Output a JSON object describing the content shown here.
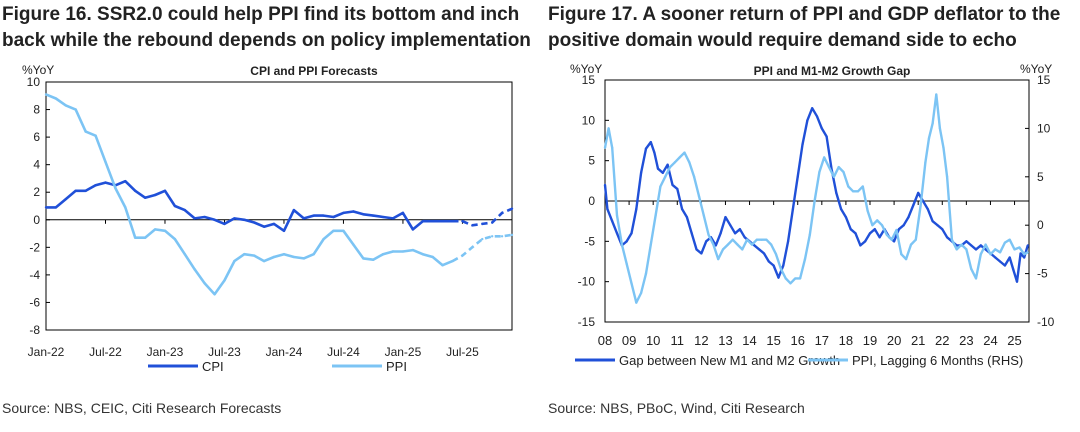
{
  "fig16": {
    "title_line1": "Figure 16. SSR2.0 could help PPI find its bottom and inch",
    "title_line2": "back while the rebound depends on policy implementation",
    "source": "Source: NBS, CEIC, Citi Research Forecasts"
  },
  "fig17": {
    "title_line1": "Figure 17. A sooner return of PPI and GDP deflator to the",
    "title_line2": "positive domain would require demand side to echo",
    "source": "Source: NBS, PBoC, Wind, Citi Research"
  },
  "colors": {
    "dark_blue": "#2050d8",
    "light_blue": "#7cc4f4",
    "axis": "#000000",
    "text": "#222222"
  },
  "chart_data": [
    {
      "type": "line",
      "title": "CPI and PPI Forecasts",
      "ylabel": "%YoY",
      "ylim": [
        -8,
        10
      ],
      "yticks": [
        10,
        8,
        6,
        4,
        2,
        0,
        -2,
        -4,
        -6,
        -8
      ],
      "x_range_months": [
        "2022-01",
        "2025-12"
      ],
      "xtick_labels": [
        "Jan-22",
        "Jul-22",
        "Jan-23",
        "Jul-23",
        "Jan-24",
        "Jul-24",
        "Jan-25",
        "Jul-25"
      ],
      "forecast_start": "2025-06",
      "legend": [
        "CPI",
        "PPI"
      ],
      "legend_position": "bottom",
      "series": [
        {
          "name": "CPI",
          "color": "dark_blue",
          "x": [
            "2022-01",
            "2022-02",
            "2022-03",
            "2022-04",
            "2022-05",
            "2022-06",
            "2022-07",
            "2022-08",
            "2022-09",
            "2022-10",
            "2022-11",
            "2022-12",
            "2023-01",
            "2023-02",
            "2023-03",
            "2023-04",
            "2023-05",
            "2023-06",
            "2023-07",
            "2023-08",
            "2023-09",
            "2023-10",
            "2023-11",
            "2023-12",
            "2024-01",
            "2024-02",
            "2024-03",
            "2024-04",
            "2024-05",
            "2024-06",
            "2024-07",
            "2024-08",
            "2024-09",
            "2024-10",
            "2024-11",
            "2024-12",
            "2025-01",
            "2025-02",
            "2025-03",
            "2025-04",
            "2025-05",
            "2025-06",
            "2025-07",
            "2025-08",
            "2025-09",
            "2025-10",
            "2025-11",
            "2025-12"
          ],
          "values": [
            0.9,
            0.9,
            1.5,
            2.1,
            2.1,
            2.5,
            2.7,
            2.5,
            2.8,
            2.1,
            1.6,
            1.8,
            2.1,
            1.0,
            0.7,
            0.1,
            0.2,
            0.0,
            -0.3,
            0.1,
            0.0,
            -0.2,
            -0.5,
            -0.3,
            -0.8,
            0.7,
            0.1,
            0.3,
            0.3,
            0.2,
            0.5,
            0.6,
            0.4,
            0.3,
            0.2,
            0.1,
            0.5,
            -0.7,
            -0.1,
            -0.1,
            -0.1,
            -0.1,
            -0.1,
            -0.4,
            -0.3,
            -0.2,
            0.5,
            0.8
          ]
        },
        {
          "name": "PPI",
          "color": "light_blue",
          "x": [
            "2022-01",
            "2022-02",
            "2022-03",
            "2022-04",
            "2022-05",
            "2022-06",
            "2022-07",
            "2022-08",
            "2022-09",
            "2022-10",
            "2022-11",
            "2022-12",
            "2023-01",
            "2023-02",
            "2023-03",
            "2023-04",
            "2023-05",
            "2023-06",
            "2023-07",
            "2023-08",
            "2023-09",
            "2023-10",
            "2023-11",
            "2023-12",
            "2024-01",
            "2024-02",
            "2024-03",
            "2024-04",
            "2024-05",
            "2024-06",
            "2024-07",
            "2024-08",
            "2024-09",
            "2024-10",
            "2024-11",
            "2024-12",
            "2025-01",
            "2025-02",
            "2025-03",
            "2025-04",
            "2025-05",
            "2025-06",
            "2025-07",
            "2025-08",
            "2025-09",
            "2025-10",
            "2025-11",
            "2025-12"
          ],
          "values": [
            9.1,
            8.8,
            8.3,
            8.0,
            6.4,
            6.1,
            4.2,
            2.3,
            0.9,
            -1.3,
            -1.3,
            -0.7,
            -0.8,
            -1.4,
            -2.5,
            -3.6,
            -4.6,
            -5.4,
            -4.4,
            -3.0,
            -2.5,
            -2.6,
            -3.0,
            -2.7,
            -2.5,
            -2.7,
            -2.8,
            -2.5,
            -1.4,
            -0.8,
            -0.8,
            -1.8,
            -2.8,
            -2.9,
            -2.5,
            -2.3,
            -2.3,
            -2.2,
            -2.5,
            -2.7,
            -3.3,
            -3.0,
            -2.6,
            -2.0,
            -1.4,
            -1.2,
            -1.2,
            -1.1
          ]
        }
      ]
    },
    {
      "type": "line",
      "title": "PPI and M1-M2 Growth Gap",
      "ylabel_left": "%YoY",
      "ylabel_right": "%YoY",
      "ylim_left": [
        -15,
        15
      ],
      "ylim_right": [
        -10,
        15
      ],
      "yticks_left": [
        15,
        10,
        5,
        0,
        -5,
        -10,
        -15
      ],
      "yticks_right": [
        15,
        10,
        5,
        0,
        -5,
        -10
      ],
      "x_range": [
        2008,
        2025.6
      ],
      "xtick_labels": [
        "08",
        "09",
        "10",
        "11",
        "12",
        "13",
        "14",
        "15",
        "16",
        "17",
        "18",
        "19",
        "20",
        "21",
        "22",
        "23",
        "24",
        "25"
      ],
      "legend": [
        "Gap between New M1 and M2 Growth",
        "PPI, Lagging 6 Months (RHS)"
      ],
      "legend_position": "bottom",
      "series": [
        {
          "name": "Gap between New M1 and M2 Growth",
          "color": "dark_blue",
          "axis": "left",
          "x": [
            2008.0,
            2008.1,
            2008.3,
            2008.5,
            2008.7,
            2008.9,
            2009.1,
            2009.3,
            2009.5,
            2009.7,
            2009.9,
            2010.05,
            2010.2,
            2010.4,
            2010.6,
            2010.8,
            2011.0,
            2011.2,
            2011.4,
            2011.6,
            2011.8,
            2012.0,
            2012.2,
            2012.4,
            2012.6,
            2012.8,
            2013.0,
            2013.2,
            2013.4,
            2013.6,
            2013.8,
            2014.0,
            2014.2,
            2014.4,
            2014.6,
            2014.8,
            2015.0,
            2015.2,
            2015.4,
            2015.6,
            2015.8,
            2016.0,
            2016.2,
            2016.4,
            2016.6,
            2016.8,
            2017.0,
            2017.2,
            2017.4,
            2017.6,
            2017.8,
            2018.0,
            2018.2,
            2018.4,
            2018.6,
            2018.8,
            2019.0,
            2019.2,
            2019.4,
            2019.6,
            2019.8,
            2020.0,
            2020.2,
            2020.4,
            2020.6,
            2020.8,
            2021.0,
            2021.2,
            2021.4,
            2021.6,
            2021.8,
            2022.0,
            2022.2,
            2022.4,
            2022.6,
            2022.8,
            2023.0,
            2023.2,
            2023.4,
            2023.6,
            2023.8,
            2024.0,
            2024.2,
            2024.4,
            2024.6,
            2024.8,
            2024.95,
            2025.1,
            2025.25,
            2025.4,
            2025.55
          ],
          "values": [
            2.0,
            -1.0,
            -2.5,
            -4.0,
            -5.5,
            -5.0,
            -4.0,
            -1.0,
            3.5,
            6.5,
            7.3,
            6.0,
            4.0,
            3.5,
            4.5,
            2.0,
            1.5,
            -1.0,
            -2.0,
            -4.0,
            -6.0,
            -6.5,
            -5.0,
            -4.5,
            -5.5,
            -4.0,
            -2.0,
            -3.0,
            -4.0,
            -3.5,
            -4.5,
            -5.0,
            -5.5,
            -6.0,
            -6.5,
            -7.5,
            -8.0,
            -9.5,
            -8.0,
            -5.0,
            -1.0,
            3.0,
            7.0,
            10.0,
            11.5,
            10.5,
            9.0,
            8.0,
            4.0,
            1.0,
            -1.0,
            -2.0,
            -3.5,
            -4.0,
            -5.5,
            -5.0,
            -4.0,
            -3.5,
            -4.5,
            -3.5,
            -4.5,
            -5.0,
            -3.5,
            -3.0,
            -2.0,
            -0.5,
            1.0,
            0.0,
            -1.0,
            -2.5,
            -3.0,
            -3.5,
            -4.5,
            -5.0,
            -5.5,
            -5.5,
            -5.0,
            -5.5,
            -6.0,
            -5.5,
            -6.0,
            -6.5,
            -7.0,
            -7.5,
            -8.0,
            -7.0,
            -8.5,
            -10.0,
            -6.5,
            -7.0,
            -5.5
          ]
        },
        {
          "name": "PPI, Lagging 6 Months (RHS)",
          "color": "light_blue",
          "axis": "right",
          "x": [
            2008.0,
            2008.15,
            2008.3,
            2008.5,
            2008.7,
            2008.9,
            2009.1,
            2009.3,
            2009.5,
            2009.7,
            2009.9,
            2010.1,
            2010.3,
            2010.5,
            2010.7,
            2010.9,
            2011.1,
            2011.3,
            2011.5,
            2011.7,
            2011.9,
            2012.1,
            2012.3,
            2012.5,
            2012.7,
            2012.9,
            2013.1,
            2013.3,
            2013.5,
            2013.7,
            2013.9,
            2014.1,
            2014.3,
            2014.5,
            2014.7,
            2014.9,
            2015.1,
            2015.3,
            2015.5,
            2015.7,
            2015.9,
            2016.1,
            2016.3,
            2016.5,
            2016.7,
            2016.9,
            2017.1,
            2017.3,
            2017.5,
            2017.7,
            2017.9,
            2018.1,
            2018.3,
            2018.5,
            2018.7,
            2018.9,
            2019.1,
            2019.3,
            2019.5,
            2019.7,
            2019.9,
            2020.1,
            2020.3,
            2020.5,
            2020.7,
            2020.9,
            2021.1,
            2021.3,
            2021.45,
            2021.6,
            2021.75,
            2021.9,
            2022.05,
            2022.2,
            2022.4,
            2022.6,
            2022.8,
            2023.0,
            2023.2,
            2023.4,
            2023.6,
            2023.8,
            2024.0,
            2024.2,
            2024.4,
            2024.6,
            2024.8,
            2025.0,
            2025.2,
            2025.4,
            2025.55
          ],
          "values": [
            8.0,
            10.0,
            8.0,
            1.0,
            -2.0,
            -4.0,
            -6.0,
            -8.0,
            -7.0,
            -5.0,
            -2.0,
            1.0,
            4.0,
            5.0,
            6.0,
            6.5,
            7.0,
            7.5,
            6.5,
            5.0,
            3.0,
            1.0,
            -1.0,
            -2.0,
            -3.5,
            -2.5,
            -2.0,
            -1.5,
            -2.0,
            -2.5,
            -1.5,
            -2.0,
            -1.5,
            -1.5,
            -1.5,
            -2.0,
            -3.0,
            -4.5,
            -5.5,
            -6.0,
            -5.5,
            -5.5,
            -3.5,
            -1.0,
            2.5,
            5.5,
            7.0,
            6.0,
            5.0,
            6.0,
            5.5,
            4.0,
            3.5,
            3.5,
            4.0,
            1.5,
            0.0,
            0.5,
            0.0,
            -1.0,
            -1.5,
            -0.5,
            -3.0,
            -3.5,
            -2.0,
            -1.5,
            2.0,
            6.5,
            9.0,
            10.5,
            13.5,
            10.0,
            8.0,
            5.0,
            -1.5,
            -2.5,
            -2.0,
            -2.5,
            -4.5,
            -5.5,
            -3.0,
            -2.0,
            -3.0,
            -2.5,
            -2.8,
            -1.8,
            -1.5,
            -2.5,
            -2.3,
            -3.0,
            -2.8
          ]
        }
      ]
    }
  ]
}
